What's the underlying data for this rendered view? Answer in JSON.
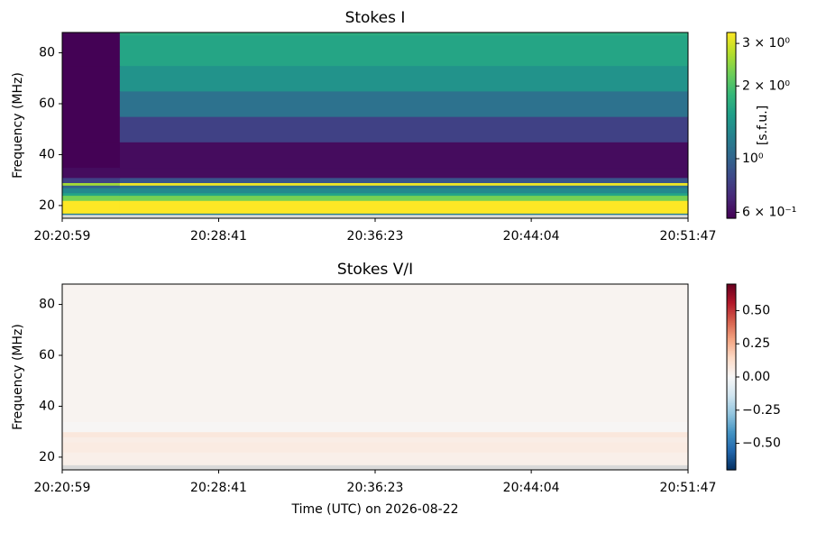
{
  "chart_data": [
    {
      "type": "heatmap",
      "title": "Stokes I",
      "ylabel": "Frequency (MHz)",
      "colorbar_label": "[s.f.u.]",
      "cmap": "viridis",
      "cscale": "log",
      "clim": [
        0.567,
        3.33
      ],
      "cticks": [
        {
          "value": 3,
          "label": "3 × 10⁰"
        },
        {
          "value": 2,
          "label": "2 × 10⁰"
        },
        {
          "value": 1,
          "label": "10⁰"
        },
        {
          "value": 0.6,
          "label": "6 × 10⁻¹"
        }
      ],
      "xlim": [
        "20:20:59",
        "20:51:47"
      ],
      "xticks": [
        "20:20:59",
        "20:28:41",
        "20:36:23",
        "20:44:04",
        "20:51:47"
      ],
      "ylim": [
        15,
        88
      ],
      "yticks": [
        20,
        40,
        60,
        80
      ],
      "x_edges": [
        "20:20:59",
        "20:23:49",
        "20:51:47"
      ],
      "y_edges": [
        15,
        16.5,
        17,
        22,
        24,
        25,
        27,
        28,
        29,
        31,
        35,
        45,
        55,
        65,
        75,
        87,
        88
      ],
      "z": [
        [
          null,
          null
        ],
        [
          1.2,
          1.2
        ],
        [
          3.5,
          3.5
        ],
        [
          2.3,
          2.3
        ],
        [
          1.6,
          1.6
        ],
        [
          1.3,
          1.3
        ],
        [
          1.0,
          1.1
        ],
        [
          2.6,
          3.2
        ],
        [
          0.8,
          0.9
        ],
        [
          0.6,
          0.6
        ],
        [
          0.57,
          0.6
        ],
        [
          0.57,
          0.8
        ],
        [
          0.57,
          1.1
        ],
        [
          0.57,
          1.4
        ],
        [
          0.57,
          1.6
        ],
        [
          0.57,
          1.7
        ]
      ]
    },
    {
      "type": "heatmap",
      "title": "Stokes V/I",
      "ylabel": "Frequency (MHz)",
      "xlabel": "Time (UTC) on 2026-08-22",
      "cmap": "RdBu_r",
      "cscale": "linear",
      "clim": [
        -0.7,
        0.7
      ],
      "cticks": [
        {
          "value": 0.5,
          "label": "0.50"
        },
        {
          "value": 0.25,
          "label": "0.25"
        },
        {
          "value": 0,
          "label": "0.00"
        },
        {
          "value": -0.25,
          "label": "−0.25"
        },
        {
          "value": -0.5,
          "label": "−0.50"
        }
      ],
      "xlim": [
        "20:20:59",
        "20:51:47"
      ],
      "xticks": [
        "20:20:59",
        "20:28:41",
        "20:36:23",
        "20:44:04",
        "20:51:47"
      ],
      "ylim": [
        15,
        88
      ],
      "yticks": [
        20,
        40,
        60,
        80
      ],
      "x_edges": [
        "20:20:59",
        "20:51:47"
      ],
      "y_edges": [
        15,
        17,
        22,
        26,
        28,
        30,
        34,
        88
      ],
      "z": [
        [
          null
        ],
        [
          0.04
        ],
        [
          0.06
        ],
        [
          0.05
        ],
        [
          0.08
        ],
        [
          0.01
        ],
        [
          0.02
        ]
      ]
    }
  ]
}
